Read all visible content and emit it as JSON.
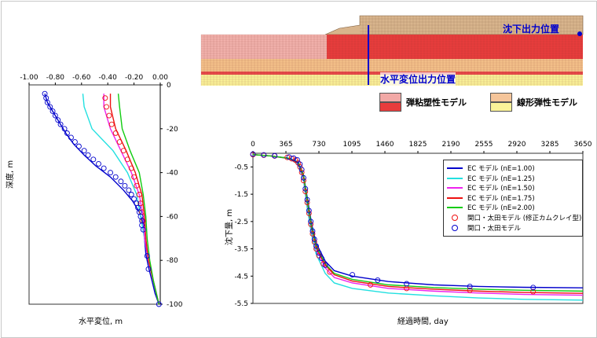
{
  "cross_section": {
    "settlement_point_label": "沈下出力位置",
    "horizontal_point_label": "水平変位出力位置",
    "legend": [
      {
        "label": "弾粘塑性モデル",
        "colors": [
          "#f2a9a6",
          "#e83c3c"
        ]
      },
      {
        "label": "線形弾性モデル",
        "colors": [
          "#f5c59a",
          "#faf299"
        ]
      }
    ]
  },
  "chart_data": [
    {
      "type": "line",
      "title": "",
      "xlabel": "水平変位, m",
      "ylabel": "深度, m",
      "xlim": [
        -1.0,
        0.0
      ],
      "ylim": [
        -100,
        0
      ],
      "x_ticks": [
        "-1.00",
        "-0.80",
        "-0.60",
        "-0.40",
        "-0.20",
        "0.00"
      ],
      "y_ticks": [
        "0",
        "-20",
        "-40",
        "-60",
        "-80",
        "-100"
      ],
      "series": [
        {
          "color": "#0000cc",
          "depth": [
            -4,
            -8,
            -12,
            -17,
            -22,
            -27,
            -32,
            -37,
            -42,
            -48,
            -53,
            -58,
            -63,
            -70,
            -77,
            -83,
            -90,
            -95,
            -100
          ],
          "disp": [
            -0.88,
            -0.86,
            -0.82,
            -0.77,
            -0.72,
            -0.66,
            -0.58,
            -0.49,
            -0.38,
            -0.28,
            -0.21,
            -0.16,
            -0.13,
            -0.12,
            -0.11,
            -0.09,
            -0.06,
            -0.04,
            -0.01
          ]
        },
        {
          "color": "#22e0e0",
          "depth": [
            -4,
            -10,
            -20,
            -30,
            -40,
            -50,
            -60,
            -70,
            -80,
            -90,
            -100
          ],
          "disp": [
            -0.59,
            -0.58,
            -0.52,
            -0.36,
            -0.25,
            -0.18,
            -0.15,
            -0.12,
            -0.09,
            -0.05,
            -0.01
          ]
        },
        {
          "color": "#ee22ee",
          "depth": [
            -4,
            -10,
            -20,
            -30,
            -40,
            -50,
            -60,
            -70,
            -80,
            -90,
            -100
          ],
          "disp": [
            -0.43,
            -0.43,
            -0.38,
            -0.3,
            -0.22,
            -0.16,
            -0.13,
            -0.12,
            -0.09,
            -0.05,
            -0.01
          ]
        },
        {
          "color": "#ee1111",
          "depth": [
            -4,
            -10,
            -20,
            -30,
            -40,
            -50,
            -60,
            -70,
            -80,
            -90,
            -100
          ],
          "disp": [
            -0.38,
            -0.38,
            -0.34,
            -0.26,
            -0.19,
            -0.14,
            -0.12,
            -0.11,
            -0.09,
            -0.05,
            -0.01
          ]
        },
        {
          "color": "#11cc11",
          "depth": [
            -4,
            -10,
            -20,
            -30,
            -40,
            -50,
            -60,
            -70,
            -80,
            -90,
            -100
          ],
          "disp": [
            -0.32,
            -0.31,
            -0.29,
            -0.23,
            -0.16,
            -0.13,
            -0.11,
            -0.1,
            -0.08,
            -0.05,
            -0.01
          ]
        }
      ],
      "markers_red": {
        "depth": [
          -6,
          -10,
          -14,
          -18,
          -22,
          -26,
          -30,
          -34,
          -38,
          -42,
          -46,
          -50,
          -54,
          -58,
          -62
        ],
        "disp": [
          -0.42,
          -0.41,
          -0.39,
          -0.37,
          -0.34,
          -0.31,
          -0.28,
          -0.25,
          -0.22,
          -0.2,
          -0.18,
          -0.16,
          -0.15,
          -0.14,
          -0.13
        ]
      },
      "markers_blue": {
        "depth": [
          -4,
          -6,
          -8,
          -10,
          -12,
          -14,
          -16,
          -18,
          -20,
          -22,
          -24,
          -26,
          -28,
          -30,
          -32,
          -34,
          -36,
          -38,
          -40,
          -42,
          -44,
          -46,
          -48,
          -50,
          -52,
          -54,
          -56,
          -58,
          -60,
          -62,
          -64,
          -66,
          -78,
          -84,
          -100
        ],
        "disp": [
          -0.88,
          -0.87,
          -0.86,
          -0.84,
          -0.82,
          -0.8,
          -0.78,
          -0.76,
          -0.73,
          -0.71,
          -0.68,
          -0.65,
          -0.62,
          -0.58,
          -0.55,
          -0.51,
          -0.47,
          -0.43,
          -0.38,
          -0.34,
          -0.3,
          -0.27,
          -0.24,
          -0.22,
          -0.2,
          -0.18,
          -0.17,
          -0.16,
          -0.15,
          -0.14,
          -0.14,
          -0.13,
          -0.1,
          -0.09,
          -0.01
        ]
      }
    },
    {
      "type": "line",
      "title": "",
      "xlabel": "経過時間, day",
      "ylabel": "沈下量, m",
      "xlim": [
        0,
        3650
      ],
      "ylim": [
        -5.5,
        0
      ],
      "x_ticks": [
        "0",
        "365",
        "730",
        "1095",
        "1460",
        "1825",
        "2190",
        "2555",
        "2920",
        "3285",
        "3650"
      ],
      "y_ticks": [
        "-0.5",
        "-1.5",
        "-2.5",
        "-3.5",
        "-4.5",
        "-5.5"
      ],
      "legend": [
        "EC モデル (nE=1.00)",
        "EC モデル (nE=1.25)",
        "EC モデル (nE=1.50)",
        "EC モデル (nE=1.75)",
        "EC モデル (nE=2.00)",
        "関口・太田モデル (修正カムクレイ型)",
        "関口・太田モデル"
      ],
      "series": [
        {
          "name": "EC モデル (nE=1.00)",
          "color": "#0000cc",
          "t": [
            0,
            200,
            400,
            500,
            560,
            600,
            650,
            700,
            800,
            900,
            1100,
            1500,
            2000,
            2500,
            3000,
            3650
          ],
          "s": [
            -0.05,
            -0.1,
            -0.18,
            -0.32,
            -0.8,
            -1.6,
            -2.6,
            -3.3,
            -3.95,
            -4.3,
            -4.5,
            -4.7,
            -4.82,
            -4.88,
            -4.91,
            -4.93
          ]
        },
        {
          "name": "EC モデル (nE=1.25)",
          "color": "#22e0e0",
          "t": [
            0,
            200,
            400,
            500,
            560,
            600,
            650,
            700,
            800,
            900,
            1100,
            1500,
            2000,
            2500,
            3000,
            3650
          ],
          "s": [
            -0.05,
            -0.1,
            -0.2,
            -0.4,
            -1.0,
            -2.0,
            -3.0,
            -3.7,
            -4.4,
            -4.75,
            -4.95,
            -5.12,
            -5.22,
            -5.3,
            -5.35,
            -5.38
          ]
        },
        {
          "name": "EC モデル (nE=1.50)",
          "color": "#ee22ee",
          "t": [
            0,
            200,
            400,
            500,
            560,
            600,
            650,
            700,
            800,
            900,
            1100,
            1500,
            2000,
            2500,
            3000,
            3650
          ],
          "s": [
            -0.05,
            -0.1,
            -0.19,
            -0.36,
            -0.9,
            -1.8,
            -2.8,
            -3.5,
            -4.2,
            -4.55,
            -4.75,
            -4.95,
            -5.05,
            -5.12,
            -5.17,
            -5.2
          ]
        },
        {
          "name": "EC モデル (nE=1.75)",
          "color": "#ee1111",
          "t": [
            0,
            200,
            400,
            500,
            560,
            600,
            650,
            700,
            800,
            900,
            1100,
            1500,
            2000,
            2500,
            3000,
            3650
          ],
          "s": [
            -0.05,
            -0.1,
            -0.19,
            -0.35,
            -0.85,
            -1.75,
            -2.75,
            -3.45,
            -4.1,
            -4.45,
            -4.68,
            -4.88,
            -4.98,
            -5.05,
            -5.1,
            -5.13
          ]
        },
        {
          "name": "EC モデル (nE=2.00)",
          "color": "#11cc11",
          "t": [
            0,
            200,
            400,
            500,
            560,
            600,
            650,
            700,
            800,
            900,
            1100,
            1500,
            2000,
            2500,
            3000,
            3650
          ],
          "s": [
            -0.05,
            -0.1,
            -0.18,
            -0.33,
            -0.8,
            -1.7,
            -2.7,
            -3.4,
            -4.05,
            -4.4,
            -4.62,
            -4.82,
            -4.92,
            -4.98,
            -5.02,
            -5.05
          ]
        }
      ],
      "markers_red": {
        "t": [
          0,
          120,
          240,
          380,
          430,
          470,
          500,
          520,
          540,
          560,
          580,
          600,
          620,
          640,
          660,
          680,
          700,
          730,
          780,
          850,
          1300,
          1700,
          2400,
          3100
        ],
        "s": [
          -0.05,
          -0.07,
          -0.1,
          -0.15,
          -0.2,
          -0.25,
          -0.35,
          -0.5,
          -0.7,
          -1.0,
          -1.4,
          -1.8,
          -2.2,
          -2.6,
          -2.95,
          -3.25,
          -3.5,
          -3.75,
          -4.05,
          -4.35,
          -4.82,
          -4.95,
          -5.02,
          -5.07
        ]
      },
      "markers_blue": {
        "t": [
          0,
          120,
          240,
          400,
          450,
          490,
          520,
          540,
          560,
          580,
          600,
          620,
          640,
          660,
          680,
          700,
          730,
          760,
          800,
          1100,
          1380,
          1700,
          2400,
          3100
        ],
        "s": [
          -0.03,
          -0.06,
          -0.09,
          -0.14,
          -0.18,
          -0.24,
          -0.4,
          -0.6,
          -0.9,
          -1.3,
          -1.7,
          -2.1,
          -2.5,
          -2.85,
          -3.15,
          -3.4,
          -3.65,
          -3.85,
          -4.1,
          -4.45,
          -4.65,
          -4.78,
          -4.88,
          -4.92
        ]
      }
    }
  ]
}
